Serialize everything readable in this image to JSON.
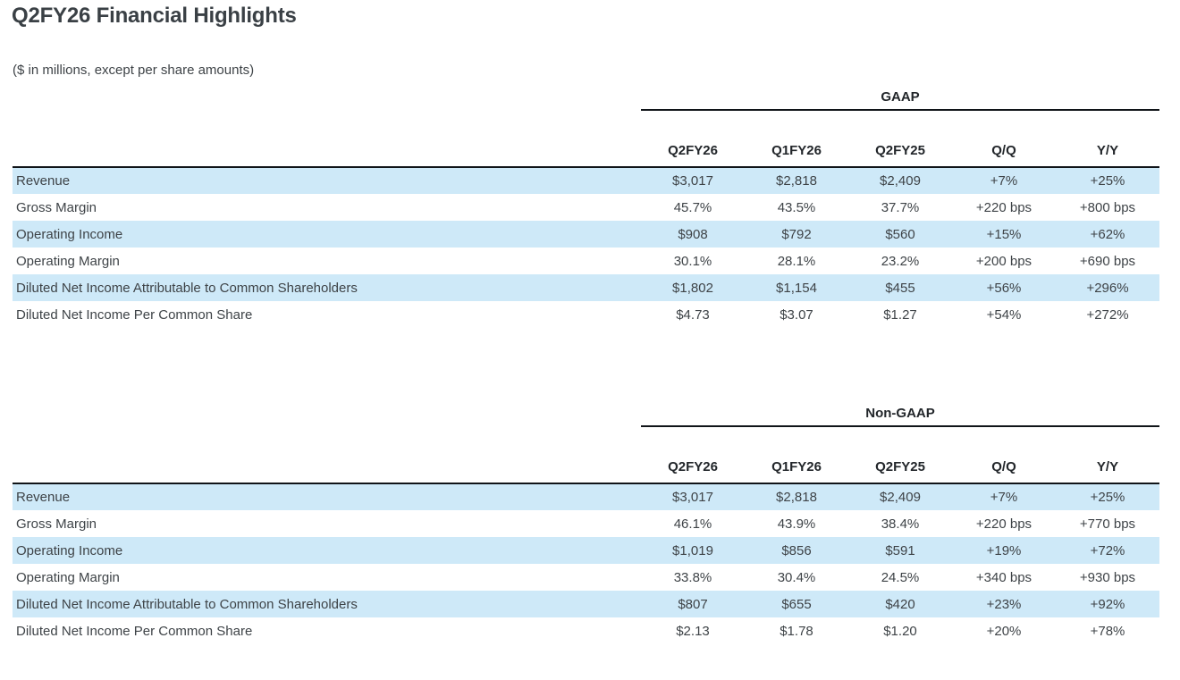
{
  "page": {
    "title": "Q2FY26 Financial Highlights",
    "subtitle": "($ in millions, except per share amounts)"
  },
  "columns": [
    "Q2FY26",
    "Q1FY26",
    "Q2FY25",
    "Q/Q",
    "Y/Y"
  ],
  "tables": [
    {
      "group": "GAAP",
      "rows": [
        {
          "label": "Revenue",
          "values": [
            "$3,017",
            "$2,818",
            "$2,409",
            "+7%",
            "+25%"
          ]
        },
        {
          "label": "Gross Margin",
          "values": [
            "45.7%",
            "43.5%",
            "37.7%",
            "+220 bps",
            "+800 bps"
          ]
        },
        {
          "label": "Operating Income",
          "values": [
            "$908",
            "$792",
            "$560",
            "+15%",
            "+62%"
          ]
        },
        {
          "label": "Operating Margin",
          "values": [
            "30.1%",
            "28.1%",
            "23.2%",
            "+200 bps",
            "+690 bps"
          ]
        },
        {
          "label": "Diluted Net Income Attributable to Common Shareholders",
          "values": [
            "$1,802",
            "$1,154",
            "$455",
            "+56%",
            "+296%"
          ]
        },
        {
          "label": "Diluted Net Income Per Common Share",
          "values": [
            "$4.73",
            "$3.07",
            "$1.27",
            "+54%",
            "+272%"
          ]
        }
      ]
    },
    {
      "group": "Non-GAAP",
      "rows": [
        {
          "label": "Revenue",
          "values": [
            "$3,017",
            "$2,818",
            "$2,409",
            "+7%",
            "+25%"
          ]
        },
        {
          "label": "Gross Margin",
          "values": [
            "46.1%",
            "43.9%",
            "38.4%",
            "+220 bps",
            "+770 bps"
          ]
        },
        {
          "label": "Operating Income",
          "values": [
            "$1,019",
            "$856",
            "$591",
            "+19%",
            "+72%"
          ]
        },
        {
          "label": "Operating Margin",
          "values": [
            "33.8%",
            "30.4%",
            "24.5%",
            "+340 bps",
            "+930 bps"
          ]
        },
        {
          "label": "Diluted Net Income Attributable to Common Shareholders",
          "values": [
            "$807",
            "$655",
            "$420",
            "+23%",
            "+92%"
          ]
        },
        {
          "label": "Diluted Net Income Per Common Share",
          "values": [
            "$2.13",
            "$1.78",
            "$1.20",
            "+20%",
            "+78%"
          ]
        }
      ]
    }
  ],
  "colors": {
    "row_highlight": "#cee9f8",
    "rule": "#101418",
    "heading_text": "#3a4045",
    "body_text": "#3e4347"
  }
}
